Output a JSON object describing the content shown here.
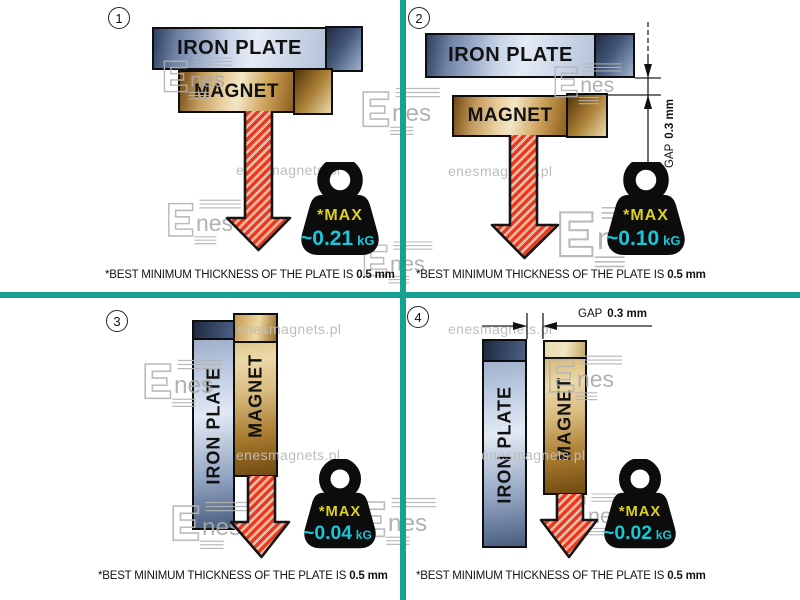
{
  "colors": {
    "divider_teal": "#16a192",
    "arrow_red": "#e63c1e",
    "weight_max_yellow": "#ddd01f",
    "weight_value_cyan": "#18c7d8"
  },
  "watermark": {
    "site": "enesmagnets.pl",
    "logo": "nes"
  },
  "caption": {
    "text": "*BEST MINIMUM THICKNESS OF THE PLATE IS",
    "bold": "0.5 mm"
  },
  "gap": {
    "label": "GAP",
    "value": "0.3 mm"
  },
  "panels": [
    {
      "number": "1",
      "plate": "IRON PLATE",
      "magnet": "MAGNET",
      "weight": {
        "max": "*MAX",
        "value": "~0.21",
        "unit": "kG"
      }
    },
    {
      "number": "2",
      "plate": "IRON PLATE",
      "magnet": "MAGNET",
      "has_gap": true,
      "weight": {
        "max": "*MAX",
        "value": "~0.10",
        "unit": "kG"
      }
    },
    {
      "number": "3",
      "plate": "IRON PLATE",
      "magnet": "MAGNET",
      "weight": {
        "max": "*MAX",
        "value": "~0.04",
        "unit": "kG"
      }
    },
    {
      "number": "4",
      "plate": "IRON PLATE",
      "magnet": "MAGNET",
      "has_gap": true,
      "weight": {
        "max": "*MAX",
        "value": "~0.02",
        "unit": "kG"
      }
    }
  ]
}
